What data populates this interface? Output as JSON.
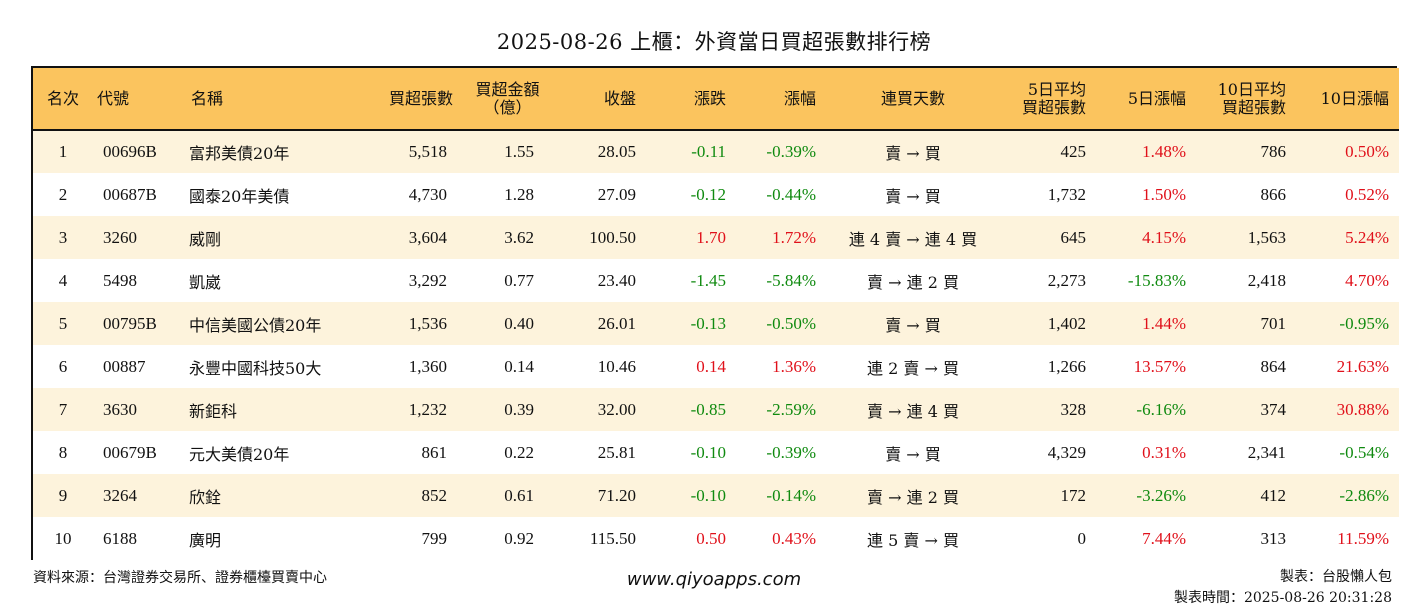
{
  "title": "2025-08-26 上櫃：外資當日買超張數排行榜",
  "headers": {
    "rank": "名次",
    "code": "代號",
    "name": "名稱",
    "net_buy_lots": "買超張數",
    "net_buy_amount_l1": "買超金額",
    "net_buy_amount_l2": "（億）",
    "close": "收盤",
    "change": "漲跌",
    "change_pct": "漲幅",
    "streak": "連買天數",
    "avg5_l1": "5日平均",
    "avg5_l2": "買超張數",
    "pct5": "5日漲幅",
    "avg10_l1": "10日平均",
    "avg10_l2": "買超張數",
    "pct10": "10日漲幅"
  },
  "rows": [
    {
      "rank": "1",
      "code": "00696B",
      "name": "富邦美債20年",
      "lots": "5,518",
      "amount": "1.55",
      "close": "28.05",
      "change": "-0.11",
      "change_pct": "-0.39%",
      "streak": "賣 → 買",
      "avg5": "425",
      "pct5": "1.48%",
      "avg10": "786",
      "pct10": "0.50%",
      "dir": "down",
      "dir5": "up",
      "dir10": "up"
    },
    {
      "rank": "2",
      "code": "00687B",
      "name": "國泰20年美債",
      "lots": "4,730",
      "amount": "1.28",
      "close": "27.09",
      "change": "-0.12",
      "change_pct": "-0.44%",
      "streak": "賣 → 買",
      "avg5": "1,732",
      "pct5": "1.50%",
      "avg10": "866",
      "pct10": "0.52%",
      "dir": "down",
      "dir5": "up",
      "dir10": "up"
    },
    {
      "rank": "3",
      "code": "3260",
      "name": "威剛",
      "lots": "3,604",
      "amount": "3.62",
      "close": "100.50",
      "change": "1.70",
      "change_pct": "1.72%",
      "streak": "連 4 賣 → 連 4 買",
      "avg5": "645",
      "pct5": "4.15%",
      "avg10": "1,563",
      "pct10": "5.24%",
      "dir": "up",
      "dir5": "up",
      "dir10": "up"
    },
    {
      "rank": "4",
      "code": "5498",
      "name": "凱崴",
      "lots": "3,292",
      "amount": "0.77",
      "close": "23.40",
      "change": "-1.45",
      "change_pct": "-5.84%",
      "streak": "賣 → 連 2 買",
      "avg5": "2,273",
      "pct5": "-15.83%",
      "avg10": "2,418",
      "pct10": "4.70%",
      "dir": "down",
      "dir5": "down",
      "dir10": "up"
    },
    {
      "rank": "5",
      "code": "00795B",
      "name": "中信美國公債20年",
      "lots": "1,536",
      "amount": "0.40",
      "close": "26.01",
      "change": "-0.13",
      "change_pct": "-0.50%",
      "streak": "賣 → 買",
      "avg5": "1,402",
      "pct5": "1.44%",
      "avg10": "701",
      "pct10": "-0.95%",
      "dir": "down",
      "dir5": "up",
      "dir10": "down"
    },
    {
      "rank": "6",
      "code": "00887",
      "name": "永豐中國科技50大",
      "lots": "1,360",
      "amount": "0.14",
      "close": "10.46",
      "change": "0.14",
      "change_pct": "1.36%",
      "streak": "連 2 賣 → 買",
      "avg5": "1,266",
      "pct5": "13.57%",
      "avg10": "864",
      "pct10": "21.63%",
      "dir": "up",
      "dir5": "up",
      "dir10": "up"
    },
    {
      "rank": "7",
      "code": "3630",
      "name": "新鉅科",
      "lots": "1,232",
      "amount": "0.39",
      "close": "32.00",
      "change": "-0.85",
      "change_pct": "-2.59%",
      "streak": "賣 → 連 4 買",
      "avg5": "328",
      "pct5": "-6.16%",
      "avg10": "374",
      "pct10": "30.88%",
      "dir": "down",
      "dir5": "down",
      "dir10": "up"
    },
    {
      "rank": "8",
      "code": "00679B",
      "name": "元大美債20年",
      "lots": "861",
      "amount": "0.22",
      "close": "25.81",
      "change": "-0.10",
      "change_pct": "-0.39%",
      "streak": "賣 → 買",
      "avg5": "4,329",
      "pct5": "0.31%",
      "avg10": "2,341",
      "pct10": "-0.54%",
      "dir": "down",
      "dir5": "up",
      "dir10": "down"
    },
    {
      "rank": "9",
      "code": "3264",
      "name": "欣銓",
      "lots": "852",
      "amount": "0.61",
      "close": "71.20",
      "change": "-0.10",
      "change_pct": "-0.14%",
      "streak": "賣 → 連 2 買",
      "avg5": "172",
      "pct5": "-3.26%",
      "avg10": "412",
      "pct10": "-2.86%",
      "dir": "down",
      "dir5": "down",
      "dir10": "down"
    },
    {
      "rank": "10",
      "code": "6188",
      "name": "廣明",
      "lots": "799",
      "amount": "0.92",
      "close": "115.50",
      "change": "0.50",
      "change_pct": "0.43%",
      "streak": "連 5 賣 → 買",
      "avg5": "0",
      "pct5": "7.44%",
      "avg10": "313",
      "pct10": "11.59%",
      "dir": "up",
      "dir5": "up",
      "dir10": "up"
    }
  ],
  "footer": {
    "source": "資料來源：台灣證券交易所、證券櫃檯買賣中心",
    "website": "www.qiyoapps.com",
    "maker": "製表：台股懶人包",
    "time": "製表時間：2025-08-26 20:31:28"
  },
  "colors": {
    "header_bg": "#fbc45e",
    "row_alt_bg": "#fdf3dc",
    "up": "#e0101a",
    "down": "#0f8a0f"
  }
}
